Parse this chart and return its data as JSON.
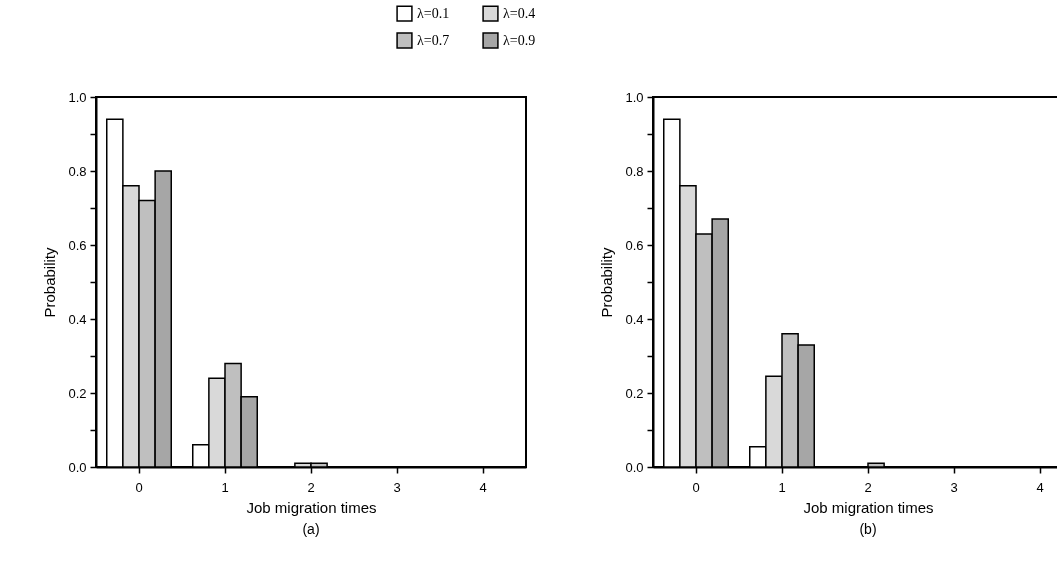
{
  "chart_data": [
    {
      "type": "bar",
      "title": "(a)",
      "xlabel": "Job migration times",
      "ylabel": "Probability",
      "categories": [
        "0",
        "1",
        "2",
        "3",
        "4"
      ],
      "series": [
        {
          "name": "λ=0.1",
          "color": "#ffffff",
          "values": [
            0.94,
            0.06,
            null,
            null,
            null
          ]
        },
        {
          "name": "λ=0.4",
          "color": "#d9d9d9",
          "values": [
            0.76,
            0.24,
            0.01,
            null,
            null
          ]
        },
        {
          "name": "λ=0.7",
          "color": "#bfbfbf",
          "values": [
            0.72,
            0.28,
            0.01,
            null,
            null
          ]
        },
        {
          "name": "λ=0.9",
          "color": "#a6a6a6",
          "values": [
            0.8,
            0.19,
            null,
            null,
            null
          ]
        }
      ],
      "ylim": [
        0,
        1
      ],
      "yticks": [
        {
          "value": 0,
          "label": "0.0"
        },
        {
          "value": 0.1,
          "label": null
        },
        {
          "value": 0.2,
          "label": "0.2"
        },
        {
          "value": 0.3,
          "label": null
        },
        {
          "value": 0.4,
          "label": "0.4"
        },
        {
          "value": 0.5,
          "label": null
        },
        {
          "value": 0.6,
          "label": "0.6"
        },
        {
          "value": 0.7,
          "label": null
        },
        {
          "value": 0.8,
          "label": "0.8"
        },
        {
          "value": 0.9,
          "label": null
        },
        {
          "value": 1,
          "label": "1.0"
        }
      ],
      "grid": false,
      "legend": "top"
    },
    {
      "type": "bar",
      "title": "(b)",
      "xlabel": "Job migration times",
      "ylabel": "Probability",
      "categories": [
        "0",
        "1",
        "2",
        "3",
        "4"
      ],
      "series": [
        {
          "name": "λ=0.1",
          "color": "#ffffff",
          "values": [
            0.94,
            0.055,
            null,
            null,
            null
          ]
        },
        {
          "name": "λ=0.4",
          "color": "#d9d9d9",
          "values": [
            0.76,
            0.245,
            null,
            null,
            null
          ]
        },
        {
          "name": "λ=0.7",
          "color": "#bfbfbf",
          "values": [
            0.63,
            0.36,
            0.01,
            null,
            null
          ]
        },
        {
          "name": "λ=0.9",
          "color": "#a6a6a6",
          "values": [
            0.67,
            0.33,
            null,
            null,
            null
          ]
        }
      ],
      "ylim": [
        0,
        1
      ],
      "yticks": [
        {
          "value": 0,
          "label": "0.0"
        },
        {
          "value": 0.1,
          "label": null
        },
        {
          "value": 0.2,
          "label": "0.2"
        },
        {
          "value": 0.3,
          "label": null
        },
        {
          "value": 0.4,
          "label": "0.4"
        },
        {
          "value": 0.5,
          "label": null
        },
        {
          "value": 0.6,
          "label": "0.6"
        },
        {
          "value": 0.7,
          "label": null
        },
        {
          "value": 0.8,
          "label": "0.8"
        },
        {
          "value": 0.9,
          "label": null
        },
        {
          "value": 1,
          "label": "1.0"
        }
      ],
      "grid": false
    }
  ]
}
